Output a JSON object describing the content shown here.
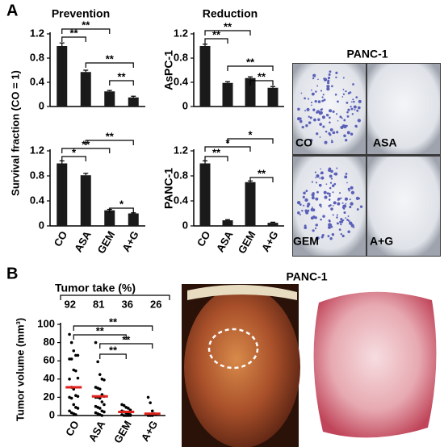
{
  "panel_labels": [
    "A",
    "B"
  ],
  "photos": {
    "title_a": "PANC-1",
    "labels": [
      "CO",
      "ASA",
      "GEM",
      "A+G"
    ],
    "title_b": "PANC-1"
  },
  "chart_data": [
    {
      "type": "bar",
      "title": "Prevention",
      "ylabel": "Survival fraction (CO = 1)",
      "values": [
        1.0,
        0.57,
        0.25,
        0.15
      ],
      "errors": [
        0.05,
        0.03,
        0.015,
        0.02
      ],
      "color": "#1a1a1a",
      "ylim": [
        0,
        1.2
      ],
      "yticks": [
        0,
        0.4,
        0.8,
        1.2
      ],
      "significance": [
        "**",
        "**",
        "**",
        "**"
      ]
    },
    {
      "type": "bar",
      "title": "Reduction",
      "side_label": "AsPC-1",
      "values": [
        1.0,
        0.39,
        0.47,
        0.31
      ],
      "errors": [
        0.03,
        0.02,
        0.02,
        0.02
      ],
      "color": "#1a1a1a",
      "ylim": [
        0,
        1.2
      ],
      "yticks": [
        0,
        0.4,
        0.8,
        1.2
      ],
      "significance": [
        "**",
        "**",
        "**",
        "**"
      ]
    },
    {
      "type": "bar",
      "categories": [
        "CO",
        "ASA",
        "GEM",
        "A+G"
      ],
      "values": [
        1.0,
        0.81,
        0.25,
        0.2
      ],
      "errors": [
        0.04,
        0.03,
        0.015,
        0.01
      ],
      "color": "#1a1a1a",
      "ylim": [
        0,
        1.2
      ],
      "yticks": [
        0,
        0.4,
        0.8,
        1.2
      ],
      "significance": [
        "*",
        "**",
        "**",
        "*"
      ]
    },
    {
      "type": "bar",
      "side_label": "PANC-1",
      "categories": [
        "CO",
        "ASA",
        "GEM",
        "A+G"
      ],
      "values": [
        1.0,
        0.09,
        0.7,
        0.05
      ],
      "errors": [
        0.04,
        0.01,
        0.02,
        0.01
      ],
      "color": "#1a1a1a",
      "ylim": [
        0,
        1.2
      ],
      "yticks": [
        0,
        0.4,
        0.8,
        1.2
      ],
      "significance": [
        "**",
        "*",
        "*",
        "**"
      ]
    },
    {
      "type": "strip",
      "ylabel": "Tumor volume (mm³)",
      "take_title": "Tumor take (%)",
      "take": [
        92,
        81,
        36,
        26
      ],
      "categories": [
        "CO",
        "ASA",
        "GEM",
        "A+G"
      ],
      "points": [
        [
          89,
          80,
          71,
          66,
          66,
          62,
          62,
          50,
          49,
          41,
          40,
          31,
          29,
          22,
          21,
          20,
          19,
          12,
          9,
          8,
          5,
          3,
          2,
          1
        ],
        [
          80,
          59,
          45,
          40,
          39,
          31,
          30,
          29,
          23,
          21,
          20,
          20,
          19,
          15,
          12,
          10,
          9,
          8,
          5,
          4,
          3,
          2,
          1,
          0
        ],
        [
          12,
          11,
          9,
          8,
          6,
          5,
          4,
          3,
          2,
          1,
          1,
          0,
          0,
          0,
          0
        ],
        [
          20,
          14,
          5,
          2,
          1,
          0,
          0,
          0
        ]
      ],
      "medians": [
        31,
        21,
        4,
        2
      ],
      "color": "#000000",
      "median_color": "#e0201b",
      "ylim": [
        0,
        100
      ],
      "yticks": [
        0,
        20,
        40,
        60,
        80,
        100
      ],
      "significance": [
        "**",
        "**",
        "**",
        "**"
      ]
    }
  ]
}
